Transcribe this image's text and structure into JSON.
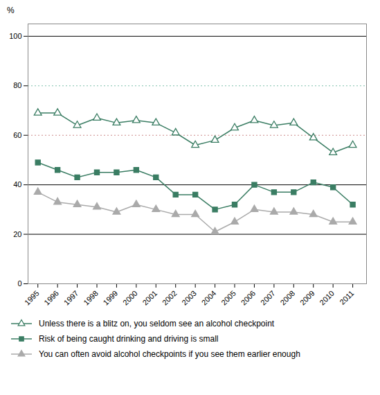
{
  "chart_data": {
    "type": "line",
    "ylabel": "%",
    "x": [
      1995,
      1996,
      1997,
      1998,
      1999,
      2000,
      2001,
      2002,
      2003,
      2004,
      2005,
      2006,
      2007,
      2008,
      2009,
      2010,
      2011
    ],
    "xlim": [
      1994.5,
      2011.7
    ],
    "xticks": [
      1995,
      1996,
      1997,
      1998,
      1999,
      2000,
      2001,
      2002,
      2003,
      2004,
      2005,
      2006,
      2007,
      2008,
      2009,
      2010,
      2011
    ],
    "ylim": [
      0,
      105
    ],
    "yticks": [
      0,
      20,
      40,
      60,
      80,
      100
    ],
    "grid": false,
    "series": [
      {
        "name": "Unless there is a blitz on, you seldom see an alcohol checkpoint",
        "color": "#3a7d63",
        "marker": "open-triangle",
        "values": [
          69,
          69,
          64,
          67,
          65,
          66,
          65,
          61,
          56,
          58,
          63,
          66,
          64,
          65,
          59,
          53,
          56
        ]
      },
      {
        "name": "Risk of being caught drinking and driving is small",
        "color": "#3a7d63",
        "marker": "square",
        "values": [
          49,
          46,
          43,
          45,
          45,
          46,
          43,
          36,
          36,
          30,
          32,
          40,
          37,
          37,
          41,
          39,
          32
        ]
      },
      {
        "name": "You can often avoid alcohol checkpoints if you see them earlier enough",
        "color": "#aaaaaa",
        "marker": "triangle",
        "values": [
          37,
          33,
          32,
          31,
          29,
          32,
          30,
          28,
          28,
          21,
          25,
          30,
          29,
          29,
          28,
          25,
          25
        ]
      }
    ],
    "hlines": [
      {
        "y": 100,
        "color": "#000000",
        "line_style": "solid"
      },
      {
        "y": 80,
        "color": "#7bbfaa",
        "line_style": "dotted"
      },
      {
        "y": 60,
        "color": "#cc8888",
        "line_style": "dotted"
      },
      {
        "y": 40,
        "color": "#000000",
        "line_style": "solid"
      },
      {
        "y": 20,
        "color": "#000000",
        "line_style": "solid"
      }
    ]
  }
}
